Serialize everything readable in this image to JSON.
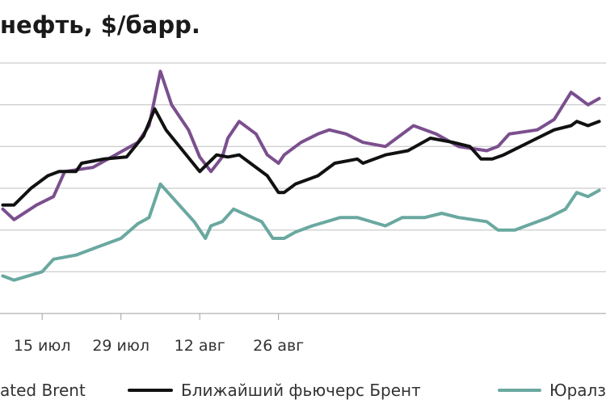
{
  "title": "нефть, $/барр.",
  "colors": {
    "dated": "#7b4f8e",
    "brent": "#111111",
    "urals": "#6aa8a0",
    "grid": "#bfbfbf"
  },
  "chart_data": {
    "type": "line",
    "title": "нефть, $/барр.",
    "x_ticks": [
      "15 июл",
      "29 июл",
      "12 авг",
      "26 авг"
    ],
    "grid": true,
    "legend_placement": "bottom",
    "series": [
      {
        "name": "ated Brent",
        "values": [
          [
            0,
            73.0
          ],
          [
            2,
            72.5
          ],
          [
            6,
            73.2
          ],
          [
            9,
            73.6
          ],
          [
            11,
            74.8
          ],
          [
            16,
            75.0
          ],
          [
            20,
            75.6
          ],
          [
            24,
            76.2
          ],
          [
            26,
            77.0
          ],
          [
            28,
            79.6
          ],
          [
            30,
            78.0
          ],
          [
            33,
            76.8
          ],
          [
            35,
            75.5
          ],
          [
            37,
            74.8
          ],
          [
            39,
            75.5
          ],
          [
            40,
            76.4
          ],
          [
            42,
            77.2
          ],
          [
            45,
            76.6
          ],
          [
            47,
            75.6
          ],
          [
            49,
            75.2
          ],
          [
            50,
            75.6
          ],
          [
            53,
            76.2
          ],
          [
            56,
            76.6
          ],
          [
            58,
            76.8
          ],
          [
            61,
            76.6
          ],
          [
            64,
            76.2
          ],
          [
            68,
            76.0
          ],
          [
            70,
            76.4
          ],
          [
            73,
            77.0
          ],
          [
            77,
            76.6
          ],
          [
            81,
            76.0
          ],
          [
            86,
            75.8
          ],
          [
            88,
            76.0
          ],
          [
            90,
            76.6
          ],
          [
            95,
            76.8
          ],
          [
            98,
            77.3
          ],
          [
            101,
            78.6
          ],
          [
            102,
            78.4
          ],
          [
            104,
            78.0
          ],
          [
            106,
            78.3
          ]
        ]
      },
      {
        "name": "Ближайший фьючерс Брент",
        "values": [
          [
            0,
            73.2
          ],
          [
            2,
            73.2
          ],
          [
            5,
            74.0
          ],
          [
            8,
            74.6
          ],
          [
            10,
            74.8
          ],
          [
            13,
            74.8
          ],
          [
            14,
            75.2
          ],
          [
            18,
            75.4
          ],
          [
            22,
            75.5
          ],
          [
            25,
            76.5
          ],
          [
            27,
            77.8
          ],
          [
            29,
            76.8
          ],
          [
            32,
            75.8
          ],
          [
            35,
            74.8
          ],
          [
            38,
            75.6
          ],
          [
            40,
            75.5
          ],
          [
            42,
            75.6
          ],
          [
            44,
            75.2
          ],
          [
            47,
            74.6
          ],
          [
            49,
            73.8
          ],
          [
            50,
            73.8
          ],
          [
            52,
            74.2
          ],
          [
            56,
            74.6
          ],
          [
            59,
            75.2
          ],
          [
            63,
            75.4
          ],
          [
            64,
            75.2
          ],
          [
            68,
            75.6
          ],
          [
            72,
            75.8
          ],
          [
            76,
            76.4
          ],
          [
            80,
            76.2
          ],
          [
            83,
            76.0
          ],
          [
            85,
            75.4
          ],
          [
            87,
            75.4
          ],
          [
            89,
            75.6
          ],
          [
            95,
            76.4
          ],
          [
            98,
            76.8
          ],
          [
            101,
            77.0
          ],
          [
            102,
            77.2
          ],
          [
            104,
            77.0
          ],
          [
            106,
            77.2
          ]
        ]
      },
      {
        "name": "Юралз",
        "values": [
          [
            0,
            69.8
          ],
          [
            2,
            69.6
          ],
          [
            7,
            70.0
          ],
          [
            9,
            70.6
          ],
          [
            13,
            70.8
          ],
          [
            17,
            71.2
          ],
          [
            21,
            71.6
          ],
          [
            24,
            72.3
          ],
          [
            26,
            72.6
          ],
          [
            28,
            74.2
          ],
          [
            30,
            73.6
          ],
          [
            34,
            72.4
          ],
          [
            36,
            71.6
          ],
          [
            37,
            72.2
          ],
          [
            39,
            72.4
          ],
          [
            41,
            73.0
          ],
          [
            46,
            72.4
          ],
          [
            48,
            71.6
          ],
          [
            50,
            71.6
          ],
          [
            52,
            71.9
          ],
          [
            55,
            72.2
          ],
          [
            60,
            72.6
          ],
          [
            63,
            72.6
          ],
          [
            68,
            72.2
          ],
          [
            71,
            72.6
          ],
          [
            75,
            72.6
          ],
          [
            78,
            72.8
          ],
          [
            81,
            72.6
          ],
          [
            86,
            72.4
          ],
          [
            88,
            72.0
          ],
          [
            91,
            72.0
          ],
          [
            93,
            72.2
          ],
          [
            97,
            72.6
          ],
          [
            100,
            73.0
          ],
          [
            102,
            73.8
          ],
          [
            104,
            73.6
          ],
          [
            106,
            73.9
          ]
        ]
      }
    ]
  }
}
